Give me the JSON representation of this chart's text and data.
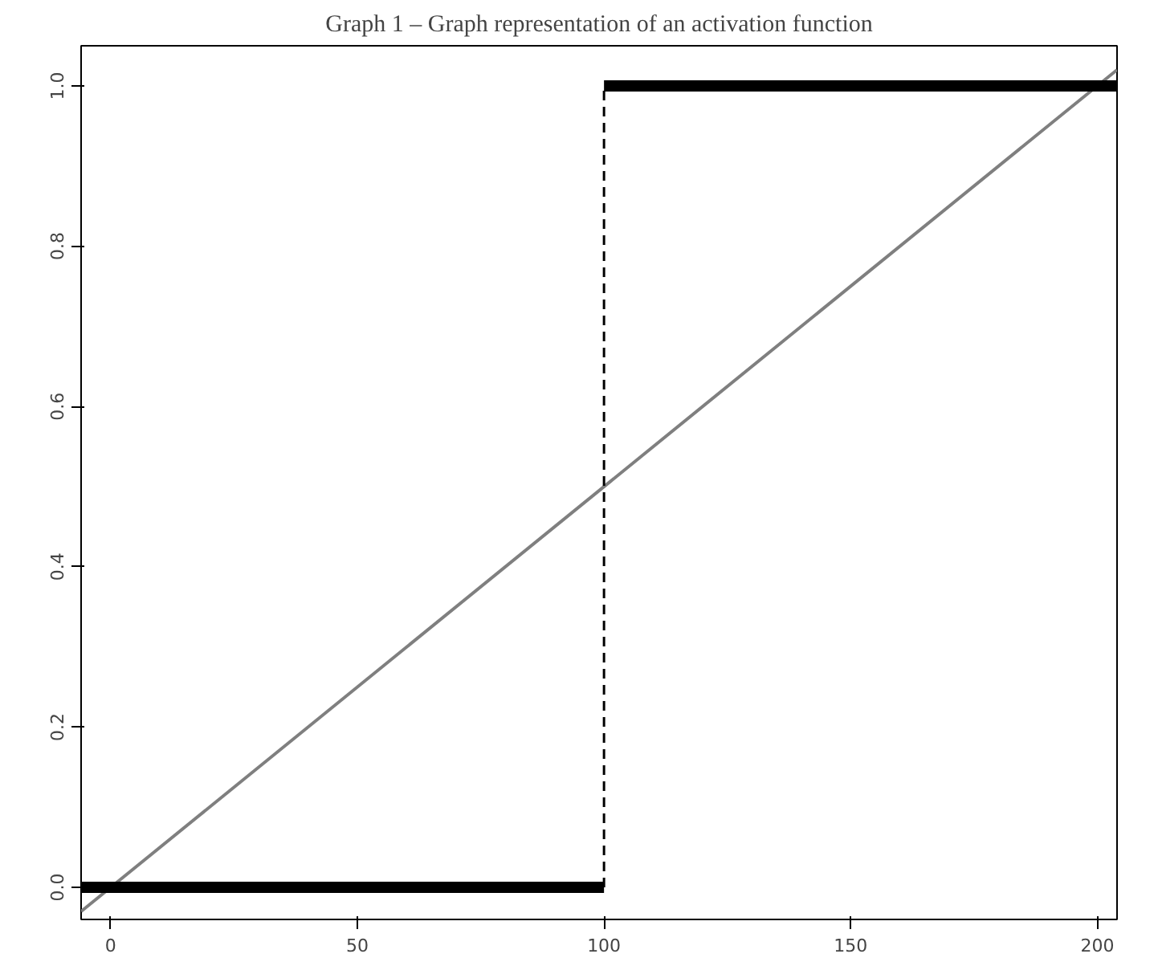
{
  "chart_data": {
    "type": "line",
    "title": "Graph 1 – Graph representation of an activation function",
    "xlim": [
      -6,
      204
    ],
    "ylim": [
      -0.04,
      1.05
    ],
    "xticks": [
      0,
      50,
      100,
      150,
      200
    ],
    "yticks": [
      {
        "value": 0,
        "label": "0.0"
      },
      {
        "value": 0.2,
        "label": "0.2"
      },
      {
        "value": 0.4,
        "label": "0.4"
      },
      {
        "value": 0.6,
        "label": "0.6"
      },
      {
        "value": 0.8,
        "label": "0.8"
      },
      {
        "value": 1,
        "label": "1.0"
      }
    ],
    "grid": false,
    "series": [
      {
        "color": "#7f7f7f",
        "x": [
          -6,
          204
        ],
        "values": [
          -0.03,
          1.02
        ],
        "line_style": "solid"
      },
      {
        "color": "#000000",
        "x": [
          -6,
          100
        ],
        "values": [
          0,
          0
        ],
        "line_style": "solid"
      },
      {
        "color": "#000000",
        "x": [
          100,
          204
        ],
        "values": [
          1,
          1
        ],
        "line_style": "solid"
      },
      {
        "color": "#000000",
        "x": [
          100,
          100
        ],
        "values": [
          0,
          1
        ],
        "line_style": "dashed"
      }
    ]
  }
}
